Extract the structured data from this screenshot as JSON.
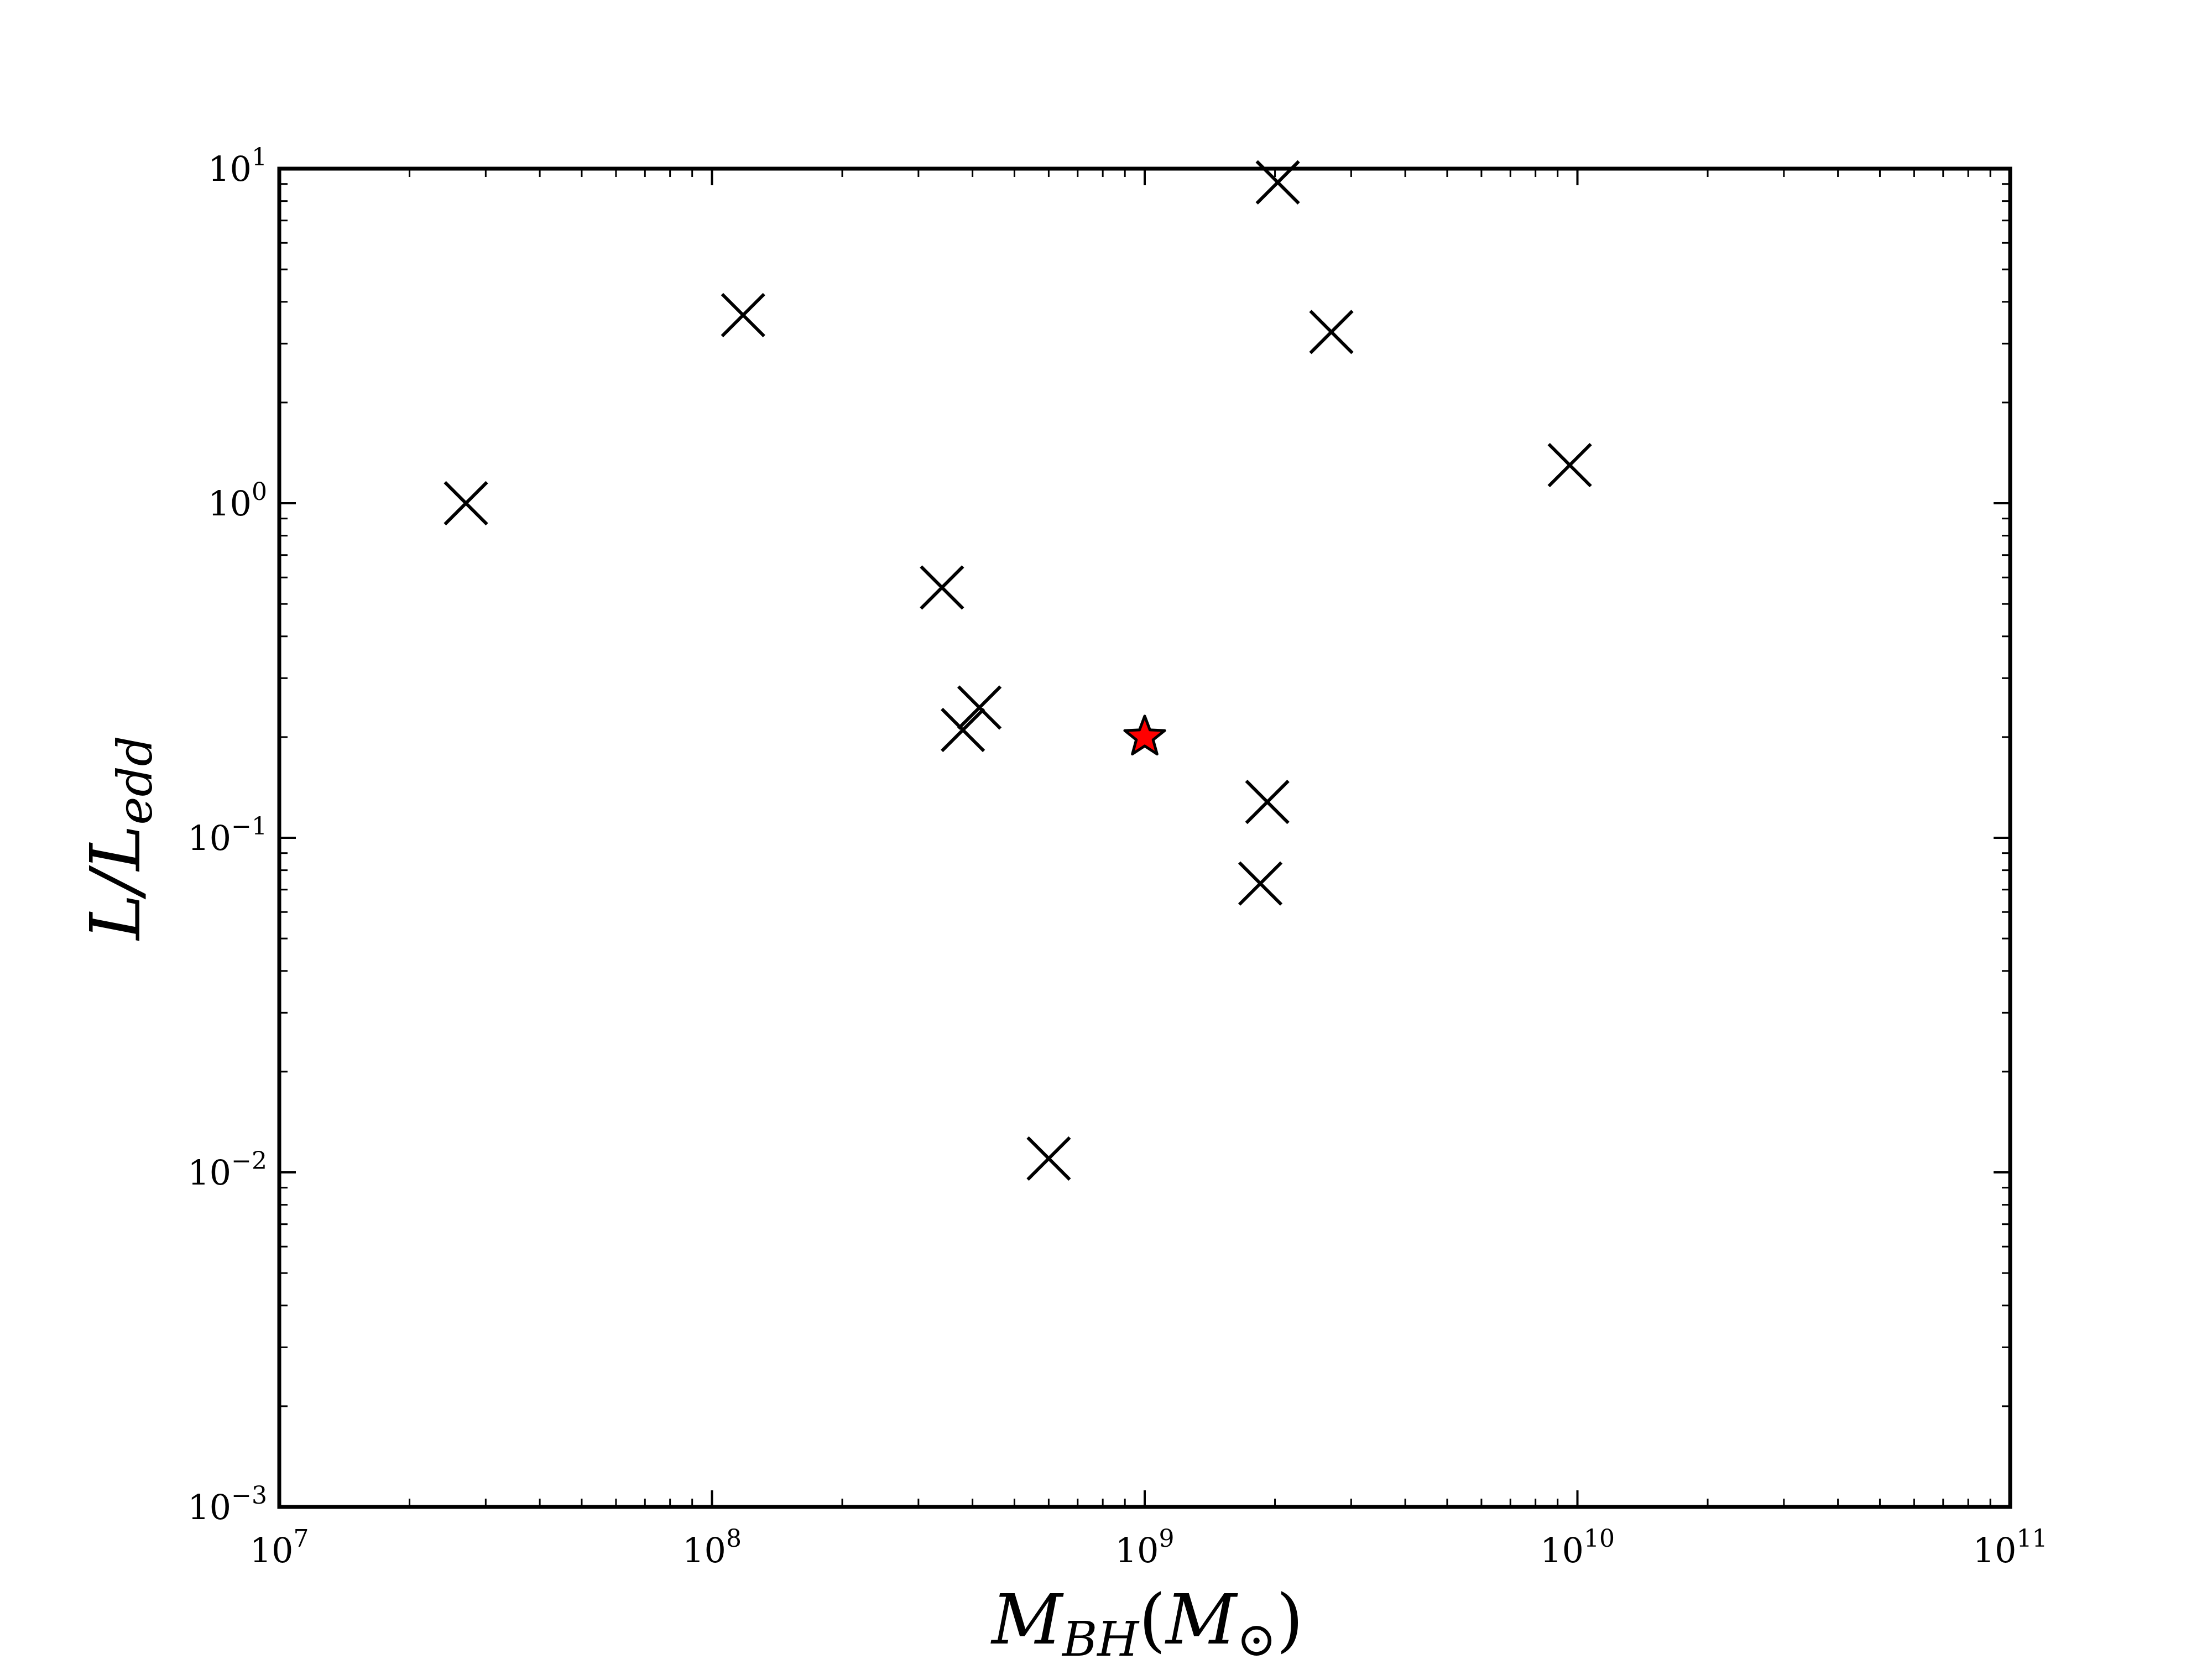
{
  "chart_data": {
    "type": "scatter",
    "title": "",
    "xlabel": {
      "main": "M",
      "main_sub": "BH",
      "paren_main": "M",
      "paren_sub": "⊙"
    },
    "ylabel": {
      "main": "L/L",
      "sub": "edd"
    },
    "x_scale": "log",
    "y_scale": "log",
    "xlim": [
      10000000,
      100000000000
    ],
    "ylim": [
      0.001,
      10
    ],
    "x_ticks": [
      {
        "base": "10",
        "exp": "7",
        "value": 10000000
      },
      {
        "base": "10",
        "exp": "8",
        "value": 100000000
      },
      {
        "base": "10",
        "exp": "9",
        "value": 1000000000
      },
      {
        "base": "10",
        "exp": "10",
        "value": 10000000000
      },
      {
        "base": "10",
        "exp": "11",
        "value": 100000000000
      }
    ],
    "y_ticks": [
      {
        "base": "10",
        "exp": "1",
        "value": 10
      },
      {
        "base": "10",
        "exp": "0",
        "value": 1
      },
      {
        "base": "10",
        "exp": "−1",
        "value": 0.1
      },
      {
        "base": "10",
        "exp": "−2",
        "value": 0.01
      },
      {
        "base": "10",
        "exp": "−3",
        "value": 0.001
      }
    ],
    "grid": false,
    "series": [
      {
        "marker": "x",
        "color": "#000000",
        "points": [
          {
            "x": 27000000,
            "y": 1.0
          },
          {
            "x": 118000000,
            "y": 3.65
          },
          {
            "x": 340000000,
            "y": 0.56
          },
          {
            "x": 380000000,
            "y": 0.21
          },
          {
            "x": 415000000,
            "y": 0.245
          },
          {
            "x": 600000000,
            "y": 0.011
          },
          {
            "x": 1850000000,
            "y": 0.073
          },
          {
            "x": 1920000000,
            "y": 0.128
          },
          {
            "x": 2030000000,
            "y": 9.1
          },
          {
            "x": 2700000000,
            "y": 3.25
          },
          {
            "x": 9600000000,
            "y": 1.3
          }
        ]
      },
      {
        "marker": "star",
        "color": "#ff0000",
        "edge_color": "#000000",
        "points": [
          {
            "x": 1000000000,
            "y": 0.2
          }
        ]
      }
    ]
  }
}
